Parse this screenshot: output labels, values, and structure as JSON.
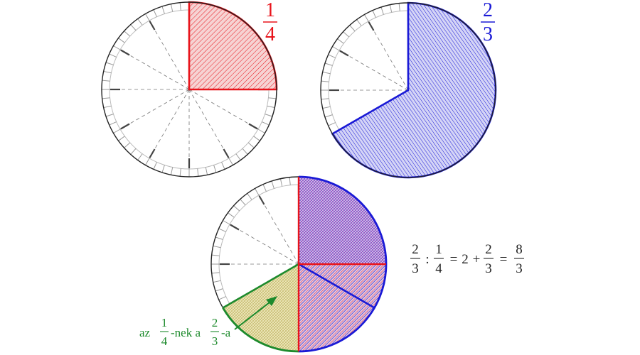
{
  "fraction_a": {
    "numerator": "1",
    "denominator": "4",
    "color": "#e8141b"
  },
  "fraction_b": {
    "numerator": "2",
    "denominator": "3",
    "color": "#1a1ad6"
  },
  "equation": {
    "a_num": "2",
    "a_den": "3",
    "op_div": ":",
    "b_num": "1",
    "b_den": "4",
    "eq1": "=",
    "whole": "2",
    "plus": "+",
    "c_num": "2",
    "c_den": "3",
    "eq2": "=",
    "d_num": "8",
    "d_den": "3"
  },
  "annotation": {
    "color": "#1d8a2c",
    "prefix": "az",
    "f1_num": "1",
    "f1_den": "4",
    "mid": "-nek a",
    "f2_num": "2",
    "f2_den": "3",
    "suffix": "-a"
  },
  "colors": {
    "outline": "#222222",
    "red": "#e8141b",
    "blue": "#1a1ad6",
    "green": "#1d8a2c",
    "yellow_fill": "#e9e3b4",
    "red_fill": "#f3c7c7",
    "blue_fill": "#c9c9f3",
    "purple_fill": "#d7b9e6"
  }
}
